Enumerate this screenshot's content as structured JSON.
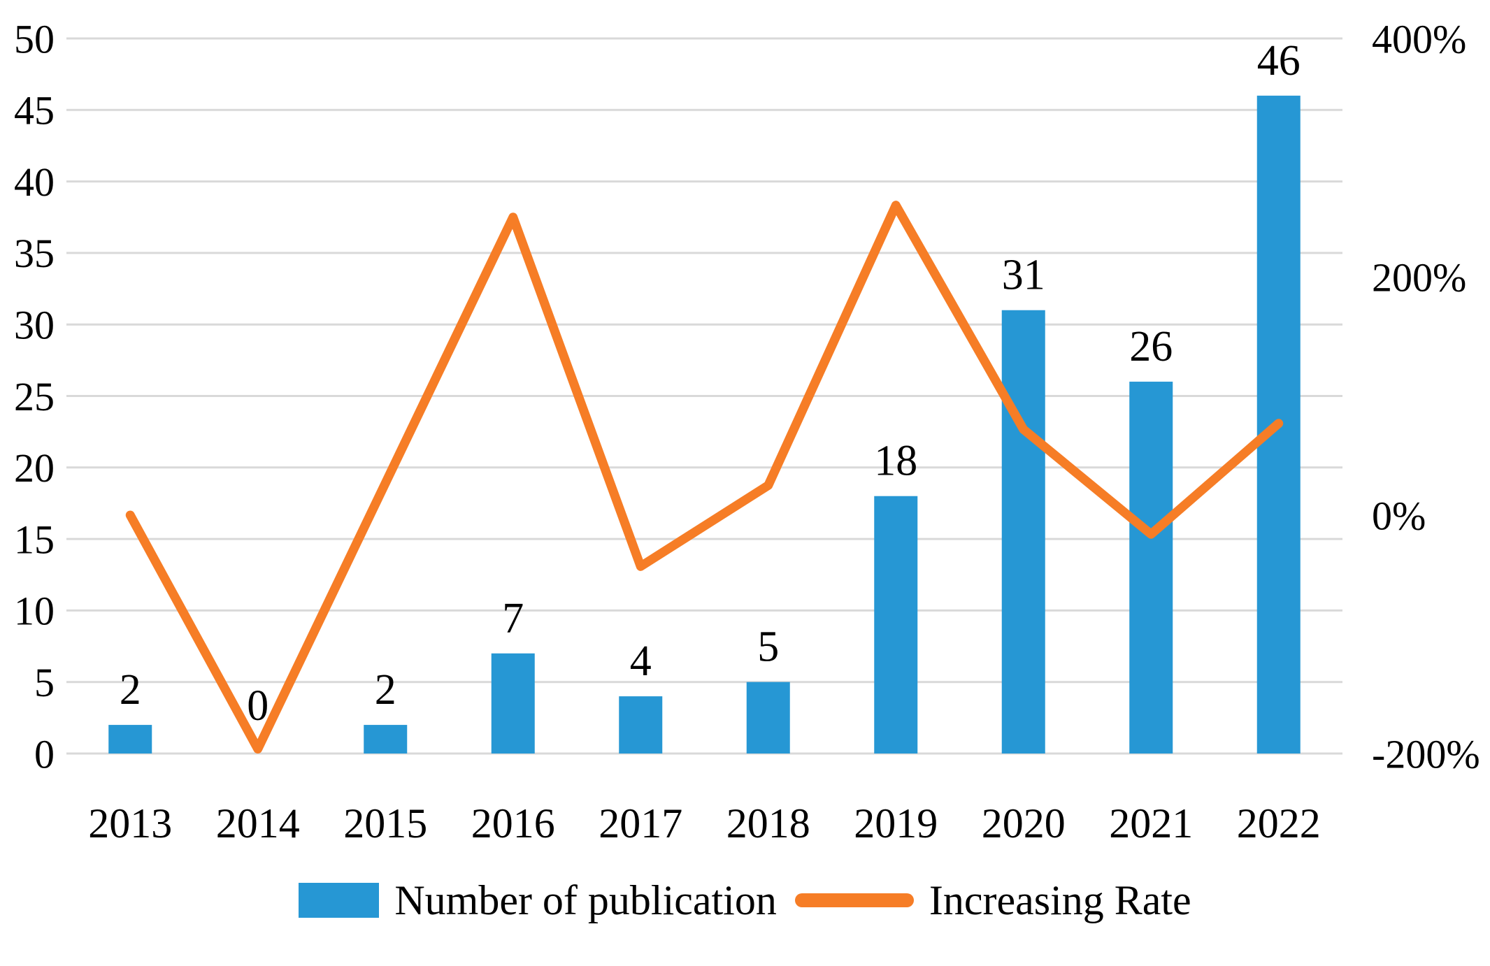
{
  "chart_data": {
    "type": "combo-bar-line",
    "title": "",
    "categories": [
      "2013",
      "2014",
      "2015",
      "2016",
      "2017",
      "2018",
      "2019",
      "2020",
      "2021",
      "2022"
    ],
    "series": [
      {
        "name": "Number of publication",
        "type": "bar",
        "axis": "left",
        "color": "#2697D4",
        "values": [
          2,
          0,
          2,
          7,
          4,
          5,
          18,
          31,
          26,
          46
        ],
        "data_labels": [
          "2",
          "0",
          "2",
          "7",
          "4",
          "5",
          "18",
          "31",
          "26",
          "46"
        ]
      },
      {
        "name": "Increasing Rate",
        "type": "line",
        "axis": "right",
        "color": "#F67D26",
        "values_percent": [
          0,
          -200,
          null,
          250,
          -43,
          25,
          260,
          72,
          -16,
          77
        ]
      }
    ],
    "left_axis": {
      "min": 0,
      "max": 50,
      "step": 5,
      "tick_labels": [
        "0",
        "5",
        "10",
        "15",
        "20",
        "25",
        "30",
        "35",
        "40",
        "45",
        "50"
      ]
    },
    "right_axis": {
      "min": -200,
      "max": 400,
      "ticks": [
        {
          "label": "400%",
          "value": 400
        },
        {
          "label": "200%",
          "value": 200
        },
        {
          "label": "0%",
          "value": 0
        },
        {
          "label": "-200%",
          "value": -200
        }
      ]
    },
    "grid": true,
    "gridline_color": "#D9D9D9",
    "text_color": "#000000",
    "legend_position": "bottom"
  },
  "legend": {
    "items": [
      {
        "label": "Number of publication",
        "swatch": "bar"
      },
      {
        "label": "Increasing Rate",
        "swatch": "line"
      }
    ]
  }
}
